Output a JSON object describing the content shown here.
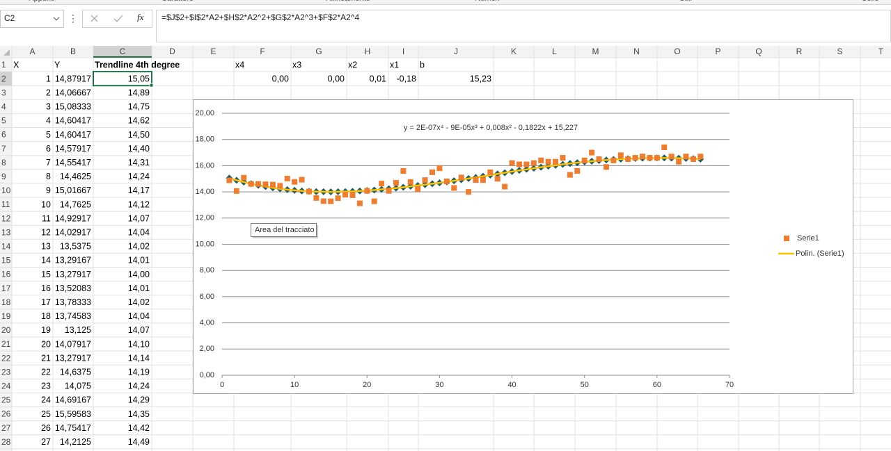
{
  "ribbon": {
    "groups": [
      "Appunti",
      "Carattere",
      "Allineamento",
      "Numeri",
      "Stili",
      "Celle"
    ]
  },
  "formula_bar": {
    "name_box": "C2",
    "function_button": "fx",
    "formula": "=$J$2+$I$2*A2+$H$2*A2^2+$G$2*A2^3+$F$2*A2^4"
  },
  "sheet": {
    "columns": [
      "A",
      "B",
      "C",
      "D",
      "E",
      "F",
      "G",
      "H",
      "I",
      "J",
      "K",
      "L",
      "M",
      "N",
      "O",
      "P",
      "Q",
      "R",
      "S",
      "T"
    ],
    "selected": "C2",
    "rows": [
      {
        "number": 1,
        "cells": {
          "A": "X",
          "B": "Y",
          "C": "Trendline 4th degree",
          "F": "x4",
          "G": "x3",
          "H": "x2",
          "I": "x1",
          "J": "b"
        }
      },
      {
        "number": 2,
        "cells": {
          "A": "1",
          "B": "14,87917",
          "C": "15,05",
          "F": "0,00",
          "G": "0,00",
          "H": "0,01",
          "I": "-0,18",
          "J": "15,23"
        }
      },
      {
        "number": 3,
        "cells": {
          "A": "2",
          "B": "14,06667",
          "C": "14,89"
        }
      },
      {
        "number": 4,
        "cells": {
          "A": "3",
          "B": "15,08333",
          "C": "14,75"
        }
      },
      {
        "number": 5,
        "cells": {
          "A": "4",
          "B": "14,60417",
          "C": "14,62"
        }
      },
      {
        "number": 6,
        "cells": {
          "A": "5",
          "B": "14,60417",
          "C": "14,50"
        }
      },
      {
        "number": 7,
        "cells": {
          "A": "6",
          "B": "14,57917",
          "C": "14,40"
        }
      },
      {
        "number": 8,
        "cells": {
          "A": "7",
          "B": "14,55417",
          "C": "14,31"
        }
      },
      {
        "number": 9,
        "cells": {
          "A": "8",
          "B": "14,4625",
          "C": "14,24"
        }
      },
      {
        "number": 10,
        "cells": {
          "A": "9",
          "B": "15,01667",
          "C": "14,17"
        }
      },
      {
        "number": 11,
        "cells": {
          "A": "10",
          "B": "14,7625",
          "C": "14,12"
        }
      },
      {
        "number": 12,
        "cells": {
          "A": "11",
          "B": "14,92917",
          "C": "14,07"
        }
      },
      {
        "number": 13,
        "cells": {
          "A": "12",
          "B": "14,02917",
          "C": "14,04"
        }
      },
      {
        "number": 14,
        "cells": {
          "A": "13",
          "B": "13,5375",
          "C": "14,02"
        }
      },
      {
        "number": 15,
        "cells": {
          "A": "14",
          "B": "13,29167",
          "C": "14,01"
        }
      },
      {
        "number": 16,
        "cells": {
          "A": "15",
          "B": "13,27917",
          "C": "14,00"
        }
      },
      {
        "number": 17,
        "cells": {
          "A": "16",
          "B": "13,52083",
          "C": "14,01"
        }
      },
      {
        "number": 18,
        "cells": {
          "A": "17",
          "B": "13,78333",
          "C": "14,02"
        }
      },
      {
        "number": 19,
        "cells": {
          "A": "18",
          "B": "13,74583",
          "C": "14,04"
        }
      },
      {
        "number": 20,
        "cells": {
          "A": "19",
          "B": "13,125",
          "C": "14,07"
        }
      },
      {
        "number": 21,
        "cells": {
          "A": "20",
          "B": "14,07917",
          "C": "14,10"
        }
      },
      {
        "number": 22,
        "cells": {
          "A": "21",
          "B": "13,27917",
          "C": "14,14"
        }
      },
      {
        "number": 23,
        "cells": {
          "A": "22",
          "B": "14,6375",
          "C": "14,19"
        }
      },
      {
        "number": 24,
        "cells": {
          "A": "23",
          "B": "14,075",
          "C": "14,24"
        }
      },
      {
        "number": 25,
        "cells": {
          "A": "24",
          "B": "14,69167",
          "C": "14,29"
        }
      },
      {
        "number": 26,
        "cells": {
          "A": "25",
          "B": "15,59583",
          "C": "14,35"
        }
      },
      {
        "number": 27,
        "cells": {
          "A": "26",
          "B": "14,75417",
          "C": "14,42"
        }
      },
      {
        "number": 28,
        "cells": {
          "A": "27",
          "B": "14,2125",
          "C": "14,49"
        }
      }
    ]
  },
  "chart": {
    "type": "scatter",
    "equation": "y = 2E-07x⁴ - 9E-05x³ + 0,008x² - 0,1822x + 15,227",
    "tooltip": "Area del tracciato",
    "grid": true,
    "legend": "right",
    "xlim": [
      0,
      70
    ],
    "xticks": [
      0,
      10,
      20,
      30,
      40,
      50,
      60,
      70
    ],
    "ylim": [
      0,
      20
    ],
    "yticks": [
      {
        "value": 0,
        "label": "0,00"
      },
      {
        "value": 2,
        "label": "2,00"
      },
      {
        "value": 4,
        "label": "4,00"
      },
      {
        "value": 6,
        "label": "6,00"
      },
      {
        "value": 8,
        "label": "8,00"
      },
      {
        "value": 10,
        "label": "10,00"
      },
      {
        "value": 12,
        "label": "12,00"
      },
      {
        "value": 14,
        "label": "14,00"
      },
      {
        "value": 16,
        "label": "16,00"
      },
      {
        "value": 18,
        "label": "18,00"
      },
      {
        "value": 20,
        "label": "20,00"
      }
    ],
    "x": [
      1,
      2,
      3,
      4,
      5,
      6,
      7,
      8,
      9,
      10,
      11,
      12,
      13,
      14,
      15,
      16,
      17,
      18,
      19,
      20,
      21,
      22,
      23,
      24,
      25,
      26,
      27,
      28,
      29,
      30,
      31,
      32,
      33,
      34,
      35,
      36,
      37,
      38,
      39,
      40,
      41,
      42,
      43,
      44,
      45,
      46,
      47,
      48,
      49,
      50,
      51,
      52,
      53,
      54,
      55,
      56,
      57,
      58,
      59,
      60,
      61,
      62,
      63,
      64,
      65,
      66
    ],
    "series": [
      {
        "name": "Serie1",
        "color": "#ed7d31",
        "marker": "square",
        "values": [
          14.87917,
          14.06667,
          15.08333,
          14.60417,
          14.60417,
          14.57917,
          14.55417,
          14.4625,
          15.01667,
          14.7625,
          14.92917,
          14.02917,
          13.5375,
          13.29167,
          13.27917,
          13.52083,
          13.78333,
          13.74583,
          13.125,
          14.07917,
          13.27917,
          14.6375,
          14.075,
          14.69167,
          15.59583,
          14.75417,
          14.2125,
          14.9,
          15.5,
          15.8,
          14.8,
          14.3,
          15.1,
          14.0,
          14.9,
          14.9,
          15.5,
          15.0,
          14.4,
          16.2,
          16.1,
          16.1,
          16.2,
          16.4,
          16.3,
          16.3,
          16.6,
          15.3,
          15.6,
          16.4,
          17.0,
          16.5,
          15.9,
          16.4,
          16.8,
          16.5,
          16.6,
          16.7,
          16.6,
          16.6,
          17.4,
          16.7,
          16.3,
          16.7,
          16.5,
          16.7
        ]
      },
      {
        "color": "#1f5c66",
        "marker": "diamond",
        "values": [
          15.05,
          14.89,
          14.75,
          14.62,
          14.5,
          14.4,
          14.31,
          14.24,
          14.17,
          14.12,
          14.07,
          14.04,
          14.02,
          14.01,
          14.0,
          14.01,
          14.02,
          14.04,
          14.07,
          14.1,
          14.14,
          14.19,
          14.24,
          14.29,
          14.35,
          14.42,
          14.49,
          14.55,
          14.62,
          14.69,
          14.77,
          14.85,
          14.93,
          15.02,
          15.1,
          15.19,
          15.28,
          15.37,
          15.46,
          15.55,
          15.64,
          15.72,
          15.8,
          15.88,
          15.96,
          16.03,
          16.1,
          16.17,
          16.23,
          16.29,
          16.34,
          16.39,
          16.43,
          16.47,
          16.5,
          16.53,
          16.55,
          16.57,
          16.58,
          16.59,
          16.59,
          16.58,
          16.57,
          16.55,
          16.53,
          16.5
        ]
      }
    ],
    "trendline": {
      "name": "Polin. (Serie1)",
      "color": "#ffc000",
      "follows": 1
    }
  }
}
